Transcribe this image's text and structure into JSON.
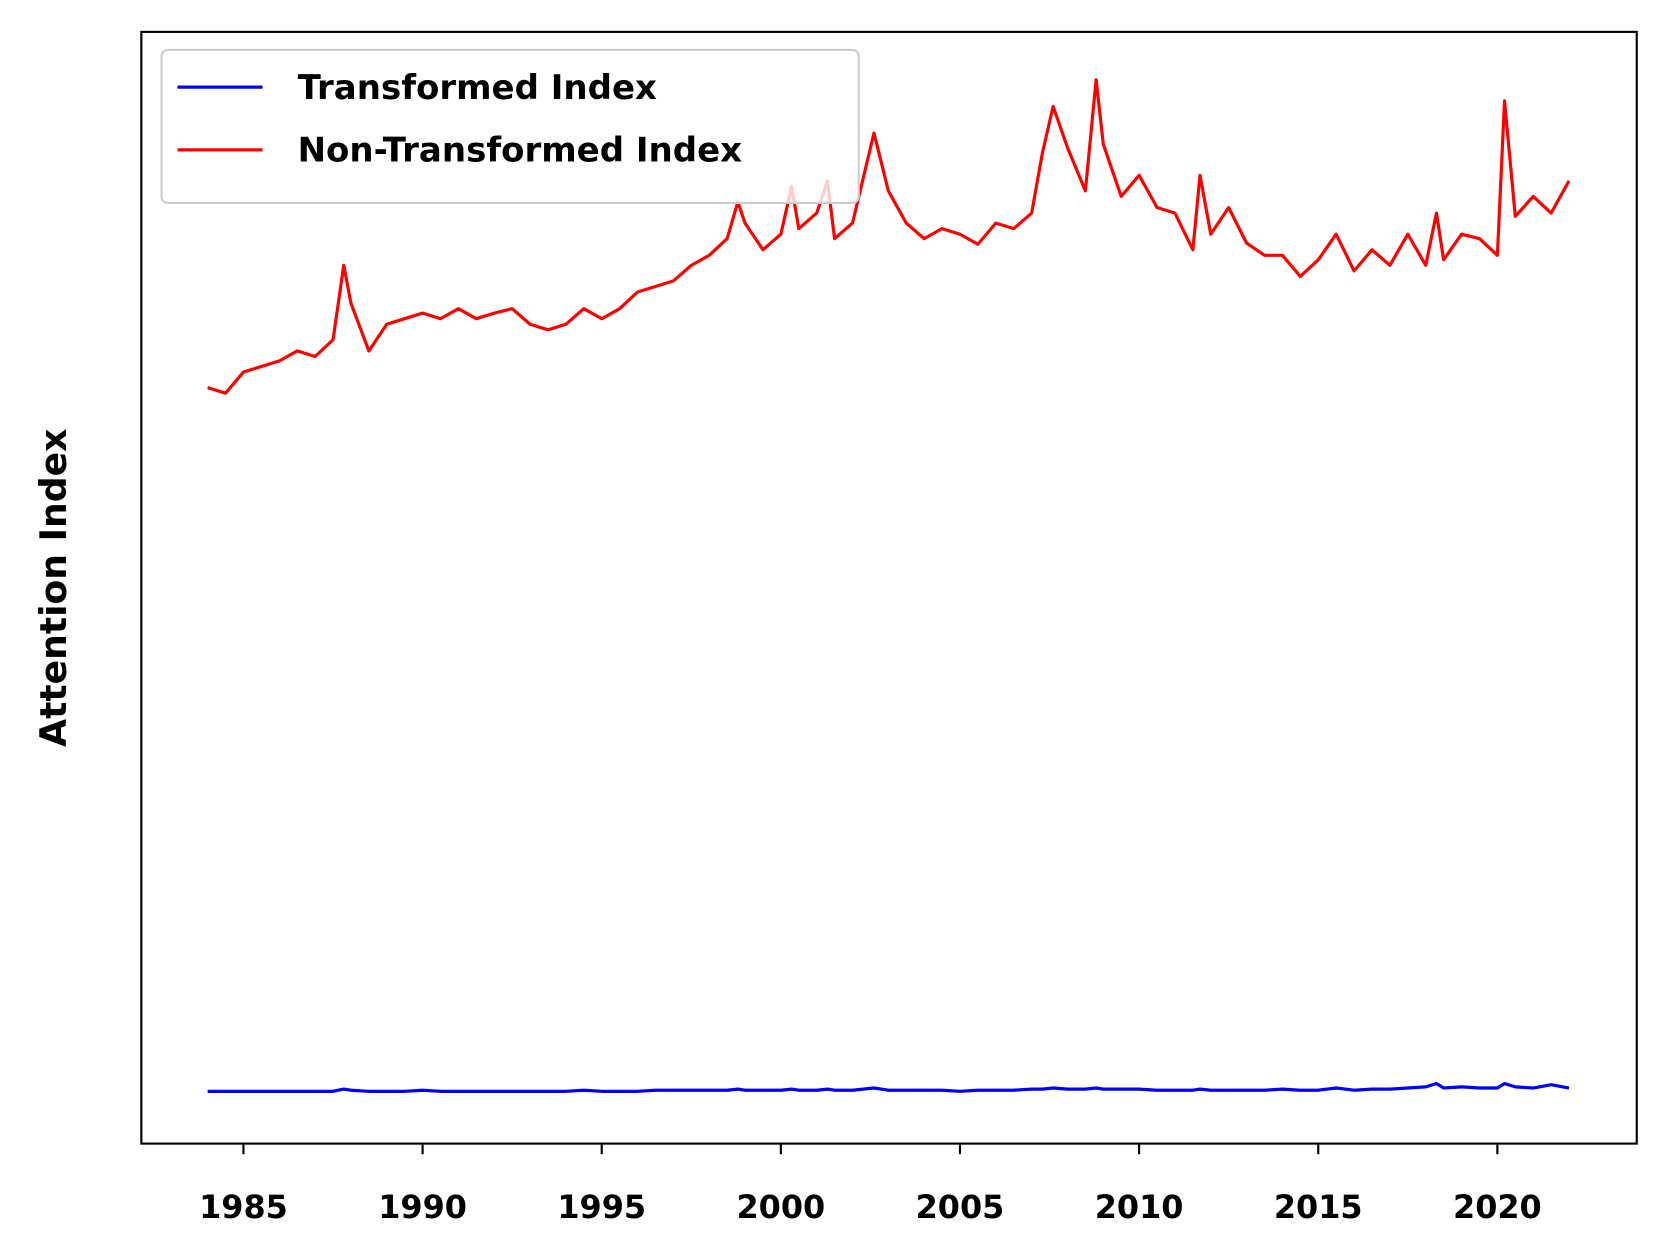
{
  "chart_data": {
    "type": "line",
    "ylabel": "Attention Index",
    "x": [
      1984.0,
      1984.5,
      1985.0,
      1985.5,
      1986.0,
      1986.5,
      1987.0,
      1987.5,
      1987.8,
      1988.0,
      1988.5,
      1989.0,
      1989.5,
      1990.0,
      1990.5,
      1991.0,
      1991.5,
      1992.0,
      1992.5,
      1993.0,
      1993.5,
      1994.0,
      1994.5,
      1995.0,
      1995.5,
      1996.0,
      1996.5,
      1997.0,
      1997.5,
      1998.0,
      1998.5,
      1998.8,
      1999.0,
      1999.5,
      2000.0,
      2000.3,
      2000.5,
      2001.0,
      2001.3,
      2001.5,
      2002.0,
      2002.6,
      2003.0,
      2003.5,
      2004.0,
      2004.5,
      2005.0,
      2005.5,
      2006.0,
      2006.5,
      2007.0,
      2007.3,
      2007.6,
      2008.0,
      2008.5,
      2008.8,
      2009.0,
      2009.5,
      2010.0,
      2010.5,
      2011.0,
      2011.5,
      2011.7,
      2012.0,
      2012.5,
      2013.0,
      2013.5,
      2014.0,
      2014.5,
      2015.0,
      2015.5,
      2016.0,
      2016.5,
      2017.0,
      2017.5,
      2018.0,
      2018.3,
      2018.5,
      2019.0,
      2019.5,
      2020.0,
      2020.2,
      2020.5,
      2021.0,
      2021.5,
      2022.0
    ],
    "series": [
      {
        "name": "Transformed Index",
        "color": "#0000ff",
        "values": [
          4.7,
          4.7,
          4.7,
          4.7,
          4.7,
          4.7,
          4.7,
          4.7,
          4.9,
          4.8,
          4.7,
          4.7,
          4.7,
          4.8,
          4.7,
          4.7,
          4.7,
          4.7,
          4.7,
          4.7,
          4.7,
          4.7,
          4.8,
          4.7,
          4.7,
          4.7,
          4.8,
          4.8,
          4.8,
          4.8,
          4.8,
          4.9,
          4.8,
          4.8,
          4.8,
          4.9,
          4.8,
          4.8,
          4.9,
          4.8,
          4.8,
          5.0,
          4.8,
          4.8,
          4.8,
          4.8,
          4.7,
          4.8,
          4.8,
          4.8,
          4.9,
          4.9,
          5.0,
          4.9,
          4.9,
          5.0,
          4.9,
          4.9,
          4.9,
          4.8,
          4.8,
          4.8,
          4.9,
          4.8,
          4.8,
          4.8,
          4.8,
          4.9,
          4.8,
          4.8,
          5.0,
          4.8,
          4.9,
          4.9,
          5.0,
          5.1,
          5.4,
          5.0,
          5.1,
          5.0,
          5.0,
          5.4,
          5.1,
          5.0,
          5.3,
          5.0
        ]
      },
      {
        "name": "Non-Transformed Index",
        "color": "#ff0000",
        "values": [
          68.0,
          67.5,
          69.4,
          69.9,
          70.4,
          71.3,
          70.8,
          72.3,
          79.0,
          75.6,
          71.3,
          73.7,
          74.2,
          74.7,
          74.2,
          75.1,
          74.2,
          74.7,
          75.1,
          73.7,
          73.2,
          73.7,
          75.1,
          74.2,
          75.1,
          76.6,
          77.1,
          77.6,
          79.0,
          79.9,
          81.4,
          84.7,
          82.8,
          80.4,
          81.8,
          86.1,
          82.3,
          83.7,
          86.6,
          81.4,
          82.8,
          90.9,
          85.7,
          82.8,
          81.4,
          82.3,
          81.8,
          80.9,
          82.8,
          82.3,
          83.7,
          89.1,
          93.3,
          89.6,
          85.7,
          95.7,
          89.9,
          85.2,
          87.1,
          84.2,
          83.7,
          80.4,
          87.1,
          81.8,
          84.2,
          81.0,
          79.9,
          79.9,
          78.0,
          79.5,
          81.8,
          78.5,
          80.4,
          79.0,
          81.8,
          79.0,
          83.7,
          79.5,
          81.8,
          81.4,
          79.9,
          93.8,
          83.4,
          85.2,
          83.7,
          86.6
        ]
      }
    ],
    "xlim": [
      1982.15,
      2023.89
    ],
    "xticks": [
      1985,
      1990,
      1995,
      2000,
      2005,
      2010,
      2015,
      2020
    ],
    "ylim": [
      0,
      100
    ],
    "legend": "upper left"
  }
}
